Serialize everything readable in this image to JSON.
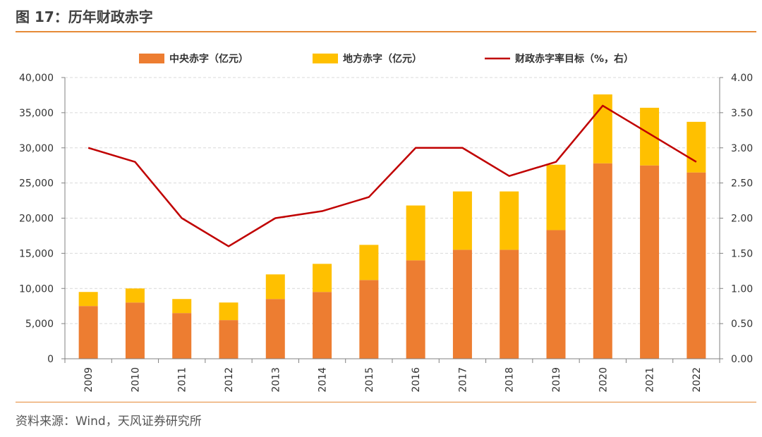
{
  "figure": {
    "title": "图 17：历年财政赤字",
    "source": "资料来源：Wind，天风证券研究所"
  },
  "chart_data": {
    "type": "bar",
    "stacked": true,
    "categories": [
      "2009",
      "2010",
      "2011",
      "2012",
      "2013",
      "2014",
      "2015",
      "2016",
      "2017",
      "2018",
      "2019",
      "2020",
      "2021",
      "2022"
    ],
    "series": [
      {
        "name": "中央赤字（亿元）",
        "axis": "left",
        "color": "#ED7D31",
        "values": [
          7500,
          8000,
          6500,
          5500,
          8500,
          9500,
          11200,
          14000,
          15500,
          15500,
          18300,
          27800,
          27500,
          26500
        ]
      },
      {
        "name": "地方赤字（亿元）",
        "axis": "left",
        "color": "#FFC000",
        "values": [
          2000,
          2000,
          2000,
          2500,
          3500,
          4000,
          5000,
          7800,
          8300,
          8300,
          9300,
          9800,
          8200,
          7200
        ]
      },
      {
        "name": "财政赤字率目标（%，右）",
        "axis": "right",
        "type": "line",
        "color": "#C00000",
        "values": [
          3.0,
          2.8,
          2.0,
          1.6,
          2.0,
          2.1,
          2.3,
          3.0,
          3.0,
          2.6,
          2.8,
          3.6,
          3.2,
          2.8
        ]
      }
    ],
    "y_left": {
      "min": 0,
      "max": 40000,
      "ticks": [
        "0",
        "5,000",
        "10,000",
        "15,000",
        "20,000",
        "25,000",
        "30,000",
        "35,000",
        "40,000"
      ]
    },
    "y_right": {
      "min": 0,
      "max": 4,
      "ticks": [
        "0.00",
        "0.50",
        "1.00",
        "1.50",
        "2.00",
        "2.50",
        "3.00",
        "3.50",
        "4.00"
      ]
    },
    "grid": true,
    "legend_position": "top"
  }
}
